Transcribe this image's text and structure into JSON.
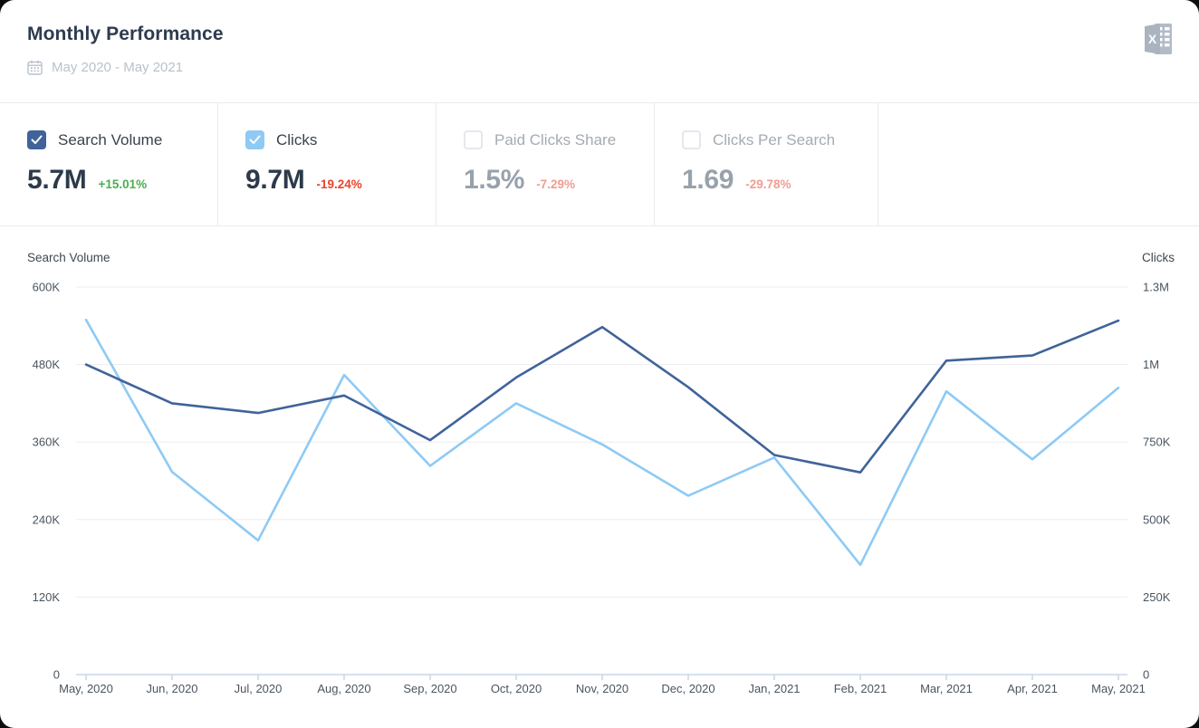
{
  "header": {
    "title": "Monthly Performance",
    "date_range": "May 2020 - May 2021"
  },
  "metrics": [
    {
      "label": "Search Volume",
      "value": "5.7M",
      "change": "+15.01%",
      "trend": "up",
      "checked": true,
      "muted": false
    },
    {
      "label": "Clicks",
      "value": "9.7M",
      "change": "-19.24%",
      "trend": "down",
      "checked": true,
      "muted": false
    },
    {
      "label": "Paid Clicks Share",
      "value": "1.5%",
      "change": "-7.29%",
      "trend": "down",
      "checked": false,
      "muted": true
    },
    {
      "label": "Clicks Per Search",
      "value": "1.69",
      "change": "-29.78%",
      "trend": "down",
      "checked": false,
      "muted": true
    }
  ],
  "chart_data": {
    "type": "line",
    "categories": [
      "May, 2020",
      "Jun, 2020",
      "Jul, 2020",
      "Aug, 2020",
      "Sep, 2020",
      "Oct, 2020",
      "Nov, 2020",
      "Dec, 2020",
      "Jan, 2021",
      "Feb, 2021",
      "Mar, 2021",
      "Apr, 2021",
      "May, 2021"
    ],
    "series": [
      {
        "name": "Search Volume",
        "axis": "left",
        "color": "#40639a",
        "values": [
          480000,
          420000,
          405000,
          432000,
          363000,
          460000,
          538000,
          445000,
          340000,
          313000,
          486000,
          494000,
          548000
        ]
      },
      {
        "name": "Clicks",
        "axis": "right",
        "color": "#8ecaf5",
        "values": [
          1190000,
          680000,
          450000,
          1005000,
          700000,
          910000,
          772000,
          600000,
          728000,
          368000,
          950000,
          722000,
          962000
        ]
      }
    ],
    "left_axis": {
      "title": "Search Volume",
      "min": 0,
      "max": 600000,
      "tick_labels": [
        "600K",
        "480K",
        "360K",
        "240K",
        "120K",
        "0"
      ]
    },
    "right_axis": {
      "title": "Clicks",
      "min": 0,
      "max": 1300000,
      "tick_labels": [
        "1.3M",
        "1M",
        "750K",
        "500K",
        "250K",
        "0"
      ]
    },
    "grid": true,
    "legend_position": "none"
  },
  "icons": {
    "calendar": "calendar-icon",
    "excel_export": "excel-export-icon",
    "checkmark": "check-icon"
  },
  "colors": {
    "series_search_volume": "#40639a",
    "series_clicks": "#8ecaf5",
    "positive": "#4cae50",
    "negative": "#e8432b",
    "negative_muted": "#f19c90",
    "value_dark": "#2c3a4a",
    "value_muted": "#98a2ac",
    "grid_line": "#ededf0",
    "axis_line": "#c9d6e8",
    "tick_text": "#4a555f",
    "axis_title_text": "#3d4852"
  }
}
